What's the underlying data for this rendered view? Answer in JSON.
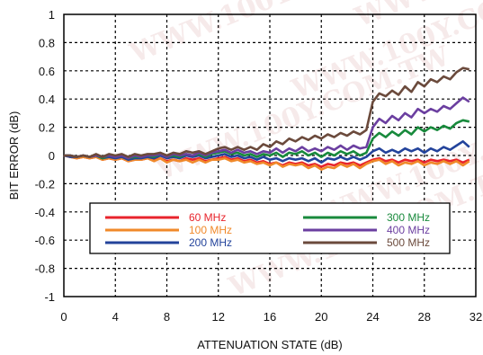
{
  "chart_data": {
    "type": "line",
    "xlabel": "ATTENUATION STATE (dB)",
    "ylabel": "BIT ERROR (dB)",
    "xlim": [
      0,
      32
    ],
    "ylim": [
      -1,
      1
    ],
    "x_ticks": [
      0,
      4,
      8,
      12,
      16,
      20,
      24,
      28,
      32
    ],
    "x_tick_labels": [
      "0",
      "4",
      "8",
      "12",
      "16",
      "20",
      "24",
      "28",
      "32"
    ],
    "y_ticks": [
      -1,
      -0.8,
      -0.6,
      -0.4,
      -0.2,
      0,
      0.2,
      0.4,
      0.6,
      0.8,
      1
    ],
    "y_tick_labels": [
      "-1",
      "-0.8",
      "-0.6",
      "-0.4",
      "-0.2",
      "0",
      "0.2",
      "0.4",
      "0.6",
      "0.8",
      "1"
    ],
    "grid": true,
    "legend_position": "lower-center",
    "watermark": "WWW.100Y.COM.TW",
    "x": [
      0,
      0.5,
      1,
      1.5,
      2,
      2.5,
      3,
      3.5,
      4,
      4.5,
      5,
      5.5,
      6,
      6.5,
      7,
      7.5,
      8,
      8.5,
      9,
      9.5,
      10,
      10.5,
      11,
      11.5,
      12,
      12.5,
      13,
      13.5,
      14,
      14.5,
      15,
      15.5,
      16,
      16.5,
      17,
      17.5,
      18,
      18.5,
      19,
      19.5,
      20,
      20.5,
      21,
      21.5,
      22,
      22.5,
      23,
      23.5,
      24,
      24.5,
      25,
      25.5,
      26,
      26.5,
      27,
      27.5,
      28,
      28.5,
      29,
      29.5,
      30,
      30.5,
      31,
      31.5
    ],
    "series": [
      {
        "name": "60 MHz",
        "color": "#e8242c",
        "values": [
          0,
          -0.01,
          -0.02,
          -0.01,
          -0.02,
          -0.01,
          -0.03,
          -0.02,
          -0.03,
          -0.02,
          -0.04,
          -0.03,
          -0.03,
          -0.02,
          -0.03,
          -0.02,
          -0.04,
          -0.03,
          -0.04,
          -0.02,
          -0.03,
          -0.02,
          -0.04,
          -0.03,
          -0.02,
          -0.01,
          -0.03,
          -0.02,
          -0.04,
          -0.03,
          -0.05,
          -0.04,
          -0.06,
          -0.05,
          -0.07,
          -0.05,
          -0.06,
          -0.05,
          -0.07,
          -0.06,
          -0.08,
          -0.06,
          -0.07,
          -0.05,
          -0.06,
          -0.05,
          -0.07,
          -0.05,
          -0.03,
          -0.02,
          -0.04,
          -0.03,
          -0.05,
          -0.03,
          -0.04,
          -0.03,
          -0.05,
          -0.03,
          -0.04,
          -0.03,
          -0.04,
          -0.03,
          -0.05,
          -0.03
        ]
      },
      {
        "name": "100 MHz",
        "color": "#f0892a",
        "values": [
          0,
          -0.01,
          -0.02,
          -0.01,
          -0.02,
          -0.01,
          -0.03,
          -0.02,
          -0.03,
          -0.02,
          -0.04,
          -0.03,
          -0.03,
          -0.02,
          -0.04,
          -0.02,
          -0.05,
          -0.03,
          -0.04,
          -0.03,
          -0.05,
          -0.03,
          -0.05,
          -0.03,
          -0.03,
          -0.02,
          -0.04,
          -0.03,
          -0.05,
          -0.04,
          -0.06,
          -0.05,
          -0.07,
          -0.05,
          -0.08,
          -0.06,
          -0.07,
          -0.06,
          -0.09,
          -0.07,
          -0.1,
          -0.08,
          -0.09,
          -0.06,
          -0.08,
          -0.06,
          -0.09,
          -0.06,
          -0.04,
          -0.03,
          -0.06,
          -0.04,
          -0.07,
          -0.05,
          -0.06,
          -0.04,
          -0.07,
          -0.05,
          -0.06,
          -0.04,
          -0.06,
          -0.04,
          -0.07,
          -0.04
        ]
      },
      {
        "name": "200 MHz",
        "color": "#23439b",
        "values": [
          0,
          -0.01,
          -0.01,
          0,
          -0.01,
          0,
          -0.02,
          -0.01,
          -0.02,
          -0.01,
          -0.03,
          -0.02,
          -0.02,
          -0.01,
          -0.02,
          0,
          -0.02,
          -0.01,
          -0.02,
          0,
          -0.01,
          0,
          -0.02,
          -0.01,
          0,
          0.01,
          -0.01,
          0,
          -0.02,
          -0.01,
          -0.03,
          -0.01,
          -0.03,
          -0.02,
          -0.04,
          -0.02,
          -0.03,
          -0.02,
          -0.04,
          -0.02,
          -0.05,
          -0.02,
          -0.03,
          -0.01,
          -0.03,
          -0.01,
          -0.03,
          -0.01,
          0.03,
          0.05,
          0.02,
          0.04,
          0.02,
          0.05,
          0.03,
          0.05,
          0.02,
          0.05,
          0.03,
          0.06,
          0.04,
          0.07,
          0.1,
          0.06
        ]
      },
      {
        "name": "300 MHz",
        "color": "#188a3c",
        "values": [
          0,
          0,
          -0.01,
          0,
          -0.01,
          0,
          -0.02,
          0,
          -0.01,
          0,
          -0.02,
          -0.01,
          -0.01,
          0,
          -0.01,
          0.01,
          -0.01,
          0,
          -0.01,
          0.01,
          0,
          0.01,
          -0.01,
          0.01,
          0.02,
          0.03,
          0.01,
          0.02,
          0,
          0.01,
          -0.01,
          0.01,
          0,
          0.02,
          -0.01,
          0.02,
          0.01,
          0.03,
          0,
          0.02,
          -0.01,
          0.02,
          0,
          0.03,
          0.01,
          0.03,
          0,
          0.02,
          0.12,
          0.16,
          0.13,
          0.17,
          0.14,
          0.18,
          0.15,
          0.2,
          0.17,
          0.2,
          0.18,
          0.21,
          0.19,
          0.23,
          0.25,
          0.24
        ]
      },
      {
        "name": "400 MHz",
        "color": "#6b3fa0",
        "values": [
          0,
          0,
          -0.01,
          0,
          -0.01,
          0,
          -0.01,
          0,
          -0.01,
          0,
          -0.02,
          0,
          -0.01,
          0,
          0,
          0.01,
          -0.01,
          0.01,
          0,
          0.01,
          0,
          0.02,
          0,
          0.02,
          0.03,
          0.04,
          0.02,
          0.04,
          0.02,
          0.03,
          0.01,
          0.03,
          0.02,
          0.05,
          0.02,
          0.05,
          0.03,
          0.06,
          0.03,
          0.05,
          0.03,
          0.06,
          0.04,
          0.07,
          0.04,
          0.07,
          0.05,
          0.06,
          0.2,
          0.26,
          0.23,
          0.28,
          0.25,
          0.3,
          0.27,
          0.33,
          0.3,
          0.33,
          0.31,
          0.35,
          0.33,
          0.37,
          0.41,
          0.38
        ]
      },
      {
        "name": "500 MHz",
        "color": "#6b4a3c",
        "values": [
          0,
          0,
          -0.01,
          0,
          -0.01,
          0.01,
          -0.01,
          0.01,
          0,
          0.01,
          -0.01,
          0.01,
          0,
          0.01,
          0.01,
          0.02,
          0,
          0.02,
          0.01,
          0.03,
          0.02,
          0.03,
          0.01,
          0.03,
          0.05,
          0.06,
          0.04,
          0.06,
          0.04,
          0.06,
          0.04,
          0.08,
          0.06,
          0.1,
          0.08,
          0.12,
          0.1,
          0.13,
          0.11,
          0.14,
          0.12,
          0.15,
          0.13,
          0.16,
          0.14,
          0.17,
          0.15,
          0.18,
          0.38,
          0.44,
          0.42,
          0.46,
          0.43,
          0.49,
          0.45,
          0.52,
          0.49,
          0.54,
          0.52,
          0.56,
          0.54,
          0.59,
          0.62,
          0.61
        ]
      }
    ]
  }
}
